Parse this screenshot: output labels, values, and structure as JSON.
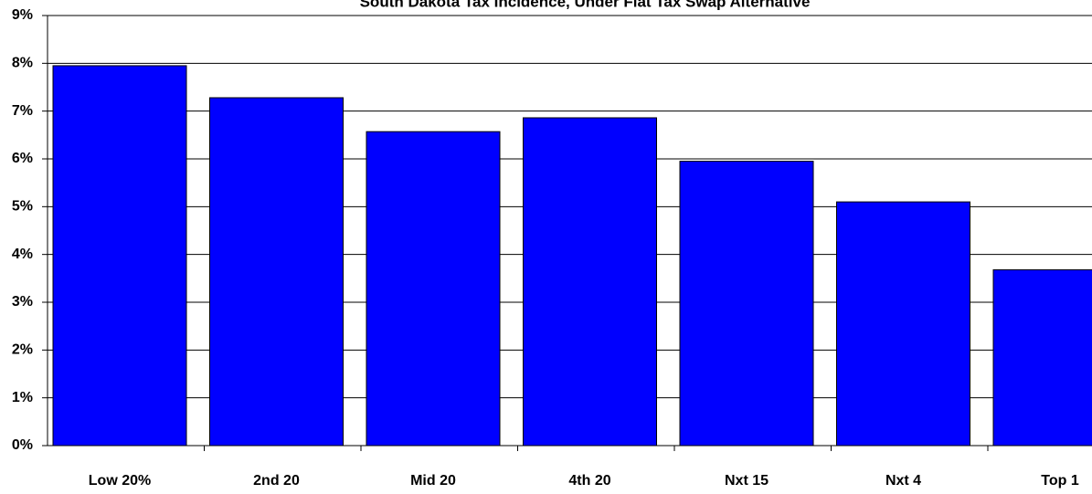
{
  "chart_data": {
    "type": "bar",
    "title": "South Dakota Tax Incidence, Under Flat Tax Swap Alternative",
    "categories": [
      "Low 20%",
      "2nd 20",
      "Mid 20",
      "4th 20",
      "Nxt 15",
      "Nxt 4",
      "Top 1"
    ],
    "values": [
      7.95,
      7.28,
      6.57,
      6.86,
      5.95,
      5.1,
      3.68
    ],
    "color": "#0000ff",
    "ylim": [
      0,
      9
    ],
    "yticks": [
      {
        "value": 0,
        "label": "0%"
      },
      {
        "value": 1,
        "label": "1%"
      },
      {
        "value": 2,
        "label": "2%"
      },
      {
        "value": 3,
        "label": "3%"
      },
      {
        "value": 4,
        "label": "4%"
      },
      {
        "value": 5,
        "label": "5%"
      },
      {
        "value": 6,
        "label": "6%"
      },
      {
        "value": 7,
        "label": "7%"
      },
      {
        "value": 8,
        "label": "8%"
      },
      {
        "value": 9,
        "label": "9%"
      }
    ],
    "grid": true
  }
}
